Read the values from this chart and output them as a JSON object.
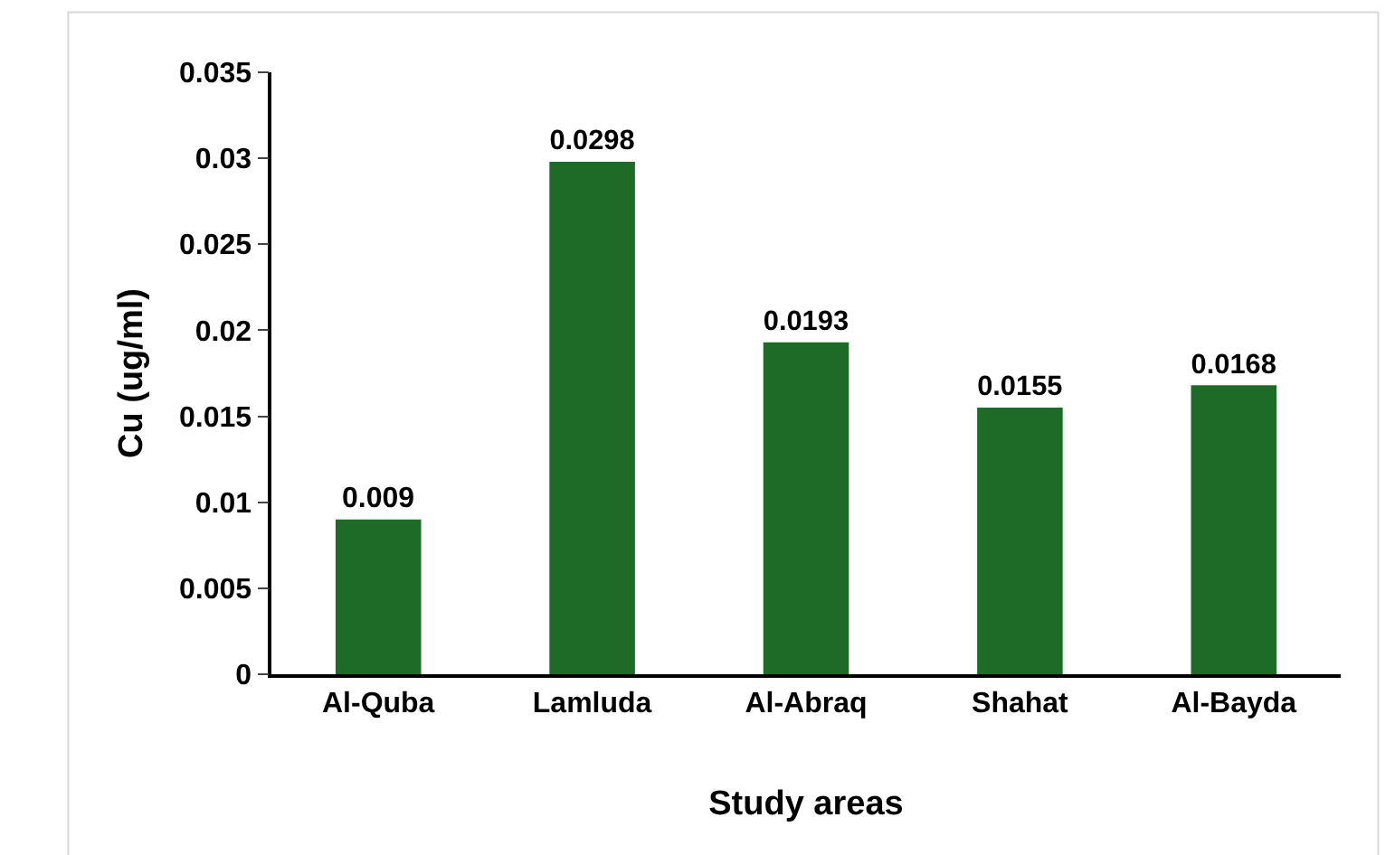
{
  "chart_data": {
    "type": "bar",
    "xlabel": "Study areas",
    "ylabel": "Cu (ug/ml)",
    "categories": [
      "Al-Quba",
      "Lamluda",
      "Al-Abraq",
      "Shahat",
      "Al-Bayda"
    ],
    "values": [
      0.009,
      0.0298,
      0.0193,
      0.0155,
      0.0168
    ],
    "color": "#1e6b28",
    "ylim": [
      0,
      0.035
    ],
    "yticks": [
      0,
      0.005,
      0.01,
      0.015,
      0.02,
      0.025,
      0.03,
      0.035
    ],
    "data_labels": true,
    "legend": false
  }
}
